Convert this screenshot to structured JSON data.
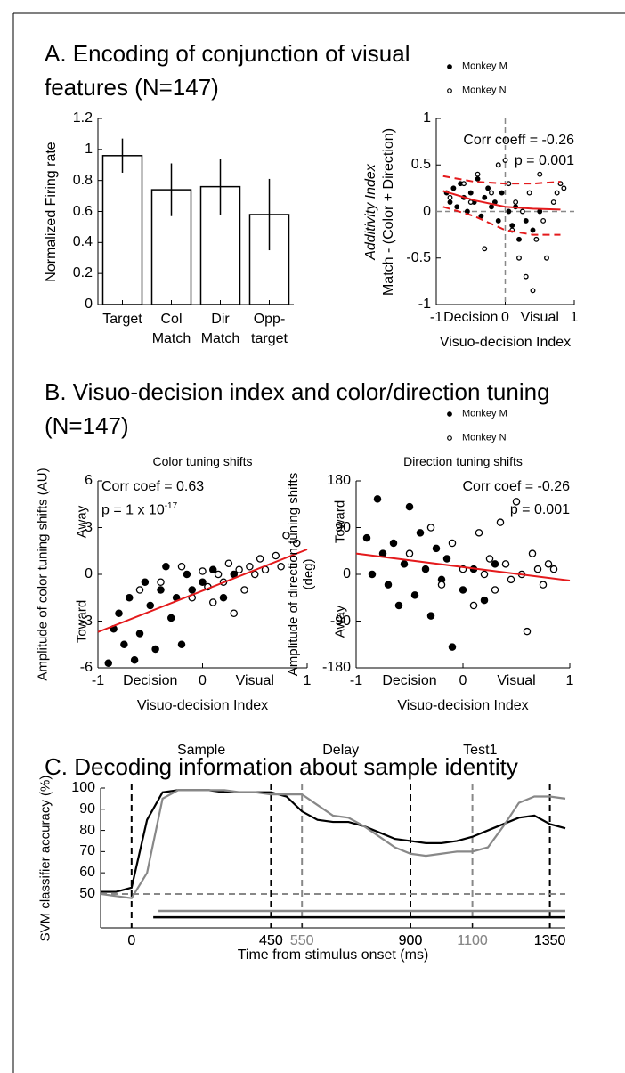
{
  "chart_data": [
    {
      "type": "bar",
      "panel_title": "A. Encoding of conjunction of visual features (N=147)",
      "categories": [
        "Target",
        "Col Match",
        "Dir Match",
        "Opp-target"
      ],
      "values": [
        0.96,
        0.74,
        0.76,
        0.58
      ],
      "errors": [
        0.11,
        0.17,
        0.18,
        0.23
      ],
      "color": "#ffffff",
      "edgecolor": "#000000",
      "ylabel": "Normalized Firing rate",
      "ylim": [
        0,
        1.2
      ],
      "yticks": [
        0,
        0.2,
        0.4,
        0.6,
        0.8,
        1,
        1.2
      ]
    },
    {
      "type": "scatter",
      "xlim": [
        -1,
        1
      ],
      "ylim": [
        -1,
        1
      ],
      "xticks": [
        -1,
        0,
        1
      ],
      "yticks": [
        -1,
        -0.5,
        0,
        0.5,
        1
      ],
      "xlabel": "Visuo-decision Index",
      "x_direction_labels": [
        "Decision",
        "Visual"
      ],
      "ylabel": [
        "Additivity Index",
        "Match - (Color + Direction)"
      ],
      "annotations": [
        {
          "text": "Corr coeff = -0.26"
        },
        {
          "text": "p = 0.001"
        }
      ],
      "zero_lines": true,
      "legend": "above",
      "series": [
        {
          "name": "Monkey M",
          "marker": "filled",
          "color": "#000000",
          "x": [
            -0.85,
            -0.8,
            -0.75,
            -0.7,
            -0.65,
            -0.6,
            -0.55,
            -0.5,
            -0.45,
            -0.4,
            -0.35,
            -0.3,
            -0.25,
            -0.2,
            -0.15,
            -0.1,
            -0.05,
            0.05,
            0.1,
            0.15,
            0.2,
            0.3,
            0.4,
            0.5
          ],
          "y": [
            0.2,
            0.1,
            0.25,
            0.05,
            0.3,
            0.15,
            0.0,
            0.2,
            0.1,
            0.35,
            -0.05,
            0.15,
            0.25,
            0.05,
            0.1,
            -0.1,
            0.2,
            0.0,
            -0.15,
            0.05,
            -0.3,
            -0.1,
            -0.2,
            0.0
          ]
        },
        {
          "name": "Monkey N",
          "marker": "open",
          "color": "#000000",
          "x": [
            -0.8,
            -0.6,
            -0.5,
            -0.4,
            -0.3,
            -0.2,
            -0.1,
            0.0,
            0.05,
            0.1,
            0.15,
            0.2,
            0.25,
            0.3,
            0.35,
            0.4,
            0.45,
            0.5,
            0.55,
            0.6,
            0.7,
            0.75,
            0.8,
            0.85
          ],
          "y": [
            0.15,
            0.3,
            0.1,
            0.4,
            -0.4,
            0.2,
            0.5,
            0.55,
            0.3,
            -0.2,
            0.1,
            -0.5,
            0.0,
            -0.7,
            0.2,
            -0.85,
            -0.3,
            0.4,
            -0.1,
            -0.5,
            0.1,
            0.2,
            0.3,
            0.25
          ]
        }
      ],
      "fit": {
        "color": "#e41a1c",
        "x": [
          -0.9,
          -0.45,
          0,
          0.4,
          0.8
        ],
        "y": [
          0.22,
          0.12,
          0.05,
          0.03,
          0.02
        ],
        "upper": [
          0.38,
          0.32,
          0.3,
          0.3,
          0.32
        ],
        "lower": [
          0.05,
          -0.05,
          -0.2,
          -0.25,
          -0.25
        ]
      }
    },
    {
      "type": "scatter",
      "panel_title": "B. Visuo-decision index and color/direction tuning (N=147)",
      "title": "Color tuning shifts",
      "xlim": [
        -1,
        1
      ],
      "ylim": [
        -6,
        6
      ],
      "xticks": [
        -1,
        0,
        1
      ],
      "yticks": [
        -6,
        -3,
        0,
        3,
        6
      ],
      "xlabel": "Visuo-decision Index",
      "x_direction_labels": [
        "Decision",
        "Visual"
      ],
      "ylabel": "Amplitude of color tuning shifts (AU)",
      "y_direction_labels": [
        "Away",
        "Toward"
      ],
      "annotations": [
        {
          "text": "Corr coef = 0.63"
        },
        {
          "text": "p = 1 x 10",
          "superscript": "-17"
        }
      ],
      "series": [
        {
          "marker": "filled",
          "color": "#000000",
          "x": [
            -0.9,
            -0.85,
            -0.8,
            -0.75,
            -0.7,
            -0.65,
            -0.6,
            -0.55,
            -0.5,
            -0.45,
            -0.4,
            -0.35,
            -0.3,
            -0.25,
            -0.2,
            -0.15,
            -0.1,
            0.0,
            0.1,
            0.2,
            0.3
          ],
          "y": [
            -5.7,
            -3.5,
            -2.5,
            -4.5,
            -1.5,
            -5.5,
            -3.8,
            -0.5,
            -2,
            -4.8,
            -1,
            0.5,
            -2.8,
            -1.5,
            -4.5,
            0,
            -1,
            -0.5,
            0.3,
            -1.5,
            0
          ]
        },
        {
          "marker": "open",
          "color": "#000000",
          "x": [
            -0.6,
            -0.4,
            -0.2,
            -0.1,
            0.0,
            0.05,
            0.1,
            0.15,
            0.2,
            0.25,
            0.3,
            0.35,
            0.4,
            0.45,
            0.5,
            0.55,
            0.6,
            0.7,
            0.75,
            0.8,
            0.9
          ],
          "y": [
            -1,
            -0.5,
            0.5,
            -1.5,
            0.2,
            -0.8,
            -1.8,
            0,
            -0.5,
            0.7,
            -2.5,
            0.3,
            -1,
            0.5,
            0,
            1,
            0.3,
            1.2,
            0.5,
            2.5,
            2
          ]
        }
      ],
      "fit": {
        "color": "#e41a1c",
        "x": [
          -1,
          1
        ],
        "y": [
          -3.7,
          1.6
        ]
      }
    },
    {
      "type": "scatter",
      "title": "Direction tuning shifts",
      "xlim": [
        -1,
        1
      ],
      "ylim": [
        -180,
        180
      ],
      "xticks": [
        -1,
        0,
        1
      ],
      "yticks": [
        -180,
        -90,
        0,
        90,
        180
      ],
      "xlabel": "Visuo-decision Index",
      "x_direction_labels": [
        "Decision",
        "Visual"
      ],
      "ylabel": "Amplitude of direction tuning shifts (deg)",
      "y_direction_labels": [
        "Toward",
        "Away"
      ],
      "annotations": [
        {
          "text": "Corr coef = -0.26"
        },
        {
          "text": "p = 0.001"
        }
      ],
      "legend": "above",
      "series": [
        {
          "name": "Monkey M",
          "marker": "filled",
          "color": "#000000",
          "x": [
            -0.9,
            -0.85,
            -0.8,
            -0.75,
            -0.7,
            -0.65,
            -0.6,
            -0.55,
            -0.5,
            -0.45,
            -0.4,
            -0.35,
            -0.3,
            -0.25,
            -0.2,
            -0.15,
            -0.1,
            0.0,
            0.1,
            0.2,
            0.3
          ],
          "y": [
            70,
            0,
            145,
            40,
            -20,
            60,
            -60,
            20,
            130,
            -40,
            80,
            10,
            -80,
            50,
            -10,
            30,
            -140,
            -30,
            10,
            -50,
            20
          ]
        },
        {
          "name": "Monkey N",
          "marker": "open",
          "color": "#000000",
          "x": [
            -0.5,
            -0.3,
            -0.2,
            -0.1,
            0.0,
            0.1,
            0.15,
            0.2,
            0.25,
            0.3,
            0.35,
            0.4,
            0.45,
            0.5,
            0.55,
            0.6,
            0.65,
            0.7,
            0.75,
            0.8,
            0.85
          ],
          "y": [
            40,
            90,
            -20,
            60,
            10,
            -60,
            80,
            0,
            30,
            -30,
            100,
            20,
            -10,
            140,
            0,
            -110,
            40,
            10,
            -20,
            20,
            10
          ]
        }
      ],
      "fit": {
        "color": "#e41a1c",
        "x": [
          -1,
          1
        ],
        "y": [
          40,
          -12
        ]
      }
    },
    {
      "type": "line",
      "panel_title": "C. Decoding information about sample identity",
      "xlabel": "Time from stimulus onset (ms)",
      "ylabel": "SVM classifier accuracy (%)",
      "xlim": [
        -100,
        1400
      ],
      "ylim": [
        34,
        100
      ],
      "xticks": [
        0,
        450,
        550,
        900,
        1100,
        1350
      ],
      "yticks": [
        50,
        60,
        70,
        80,
        90,
        100
      ],
      "x": [
        -100,
        -50,
        0,
        50,
        100,
        150,
        200,
        250,
        300,
        350,
        400,
        450,
        500,
        550,
        600,
        650,
        700,
        750,
        800,
        850,
        900,
        950,
        1000,
        1050,
        1100,
        1150,
        1200,
        1250,
        1300,
        1350,
        1400
      ],
      "series": [
        {
          "color": "#000000",
          "values": [
            51,
            51,
            53,
            85,
            98,
            99,
            99,
            99,
            98,
            98,
            98,
            98,
            96,
            89,
            85,
            84,
            84,
            82,
            79,
            76,
            75,
            74,
            74,
            75,
            77,
            80,
            83,
            86,
            87,
            83,
            81
          ]
        },
        {
          "color": "#888888",
          "values": [
            50,
            49,
            48,
            60,
            95,
            99,
            99,
            99,
            99,
            98,
            98,
            97,
            97,
            97,
            92,
            87,
            86,
            82,
            77,
            72,
            69,
            68,
            69,
            70,
            70,
            72,
            82,
            93,
            96,
            96,
            95
          ]
        }
      ],
      "vlines": [
        {
          "x": 0,
          "color": "#000000"
        },
        {
          "x": 450,
          "color": "#000000"
        },
        {
          "x": 550,
          "color": "#888888"
        },
        {
          "x": 900,
          "color": "#000000"
        },
        {
          "x": 1100,
          "color": "#888888"
        },
        {
          "x": 1350,
          "color": "#000000"
        }
      ],
      "hline": {
        "y": 50,
        "color": "#888888"
      },
      "sig_bars": [
        {
          "color": "#888888",
          "start": 87,
          "end": 1400,
          "y": 42
        },
        {
          "color": "#000000",
          "start": 70,
          "end": 1400,
          "y": 39
        }
      ],
      "epochs": [
        {
          "label": "Sample",
          "x": 225
        },
        {
          "label": "Delay",
          "x": 675
        },
        {
          "label": "Test1",
          "x": 1125
        }
      ]
    }
  ]
}
